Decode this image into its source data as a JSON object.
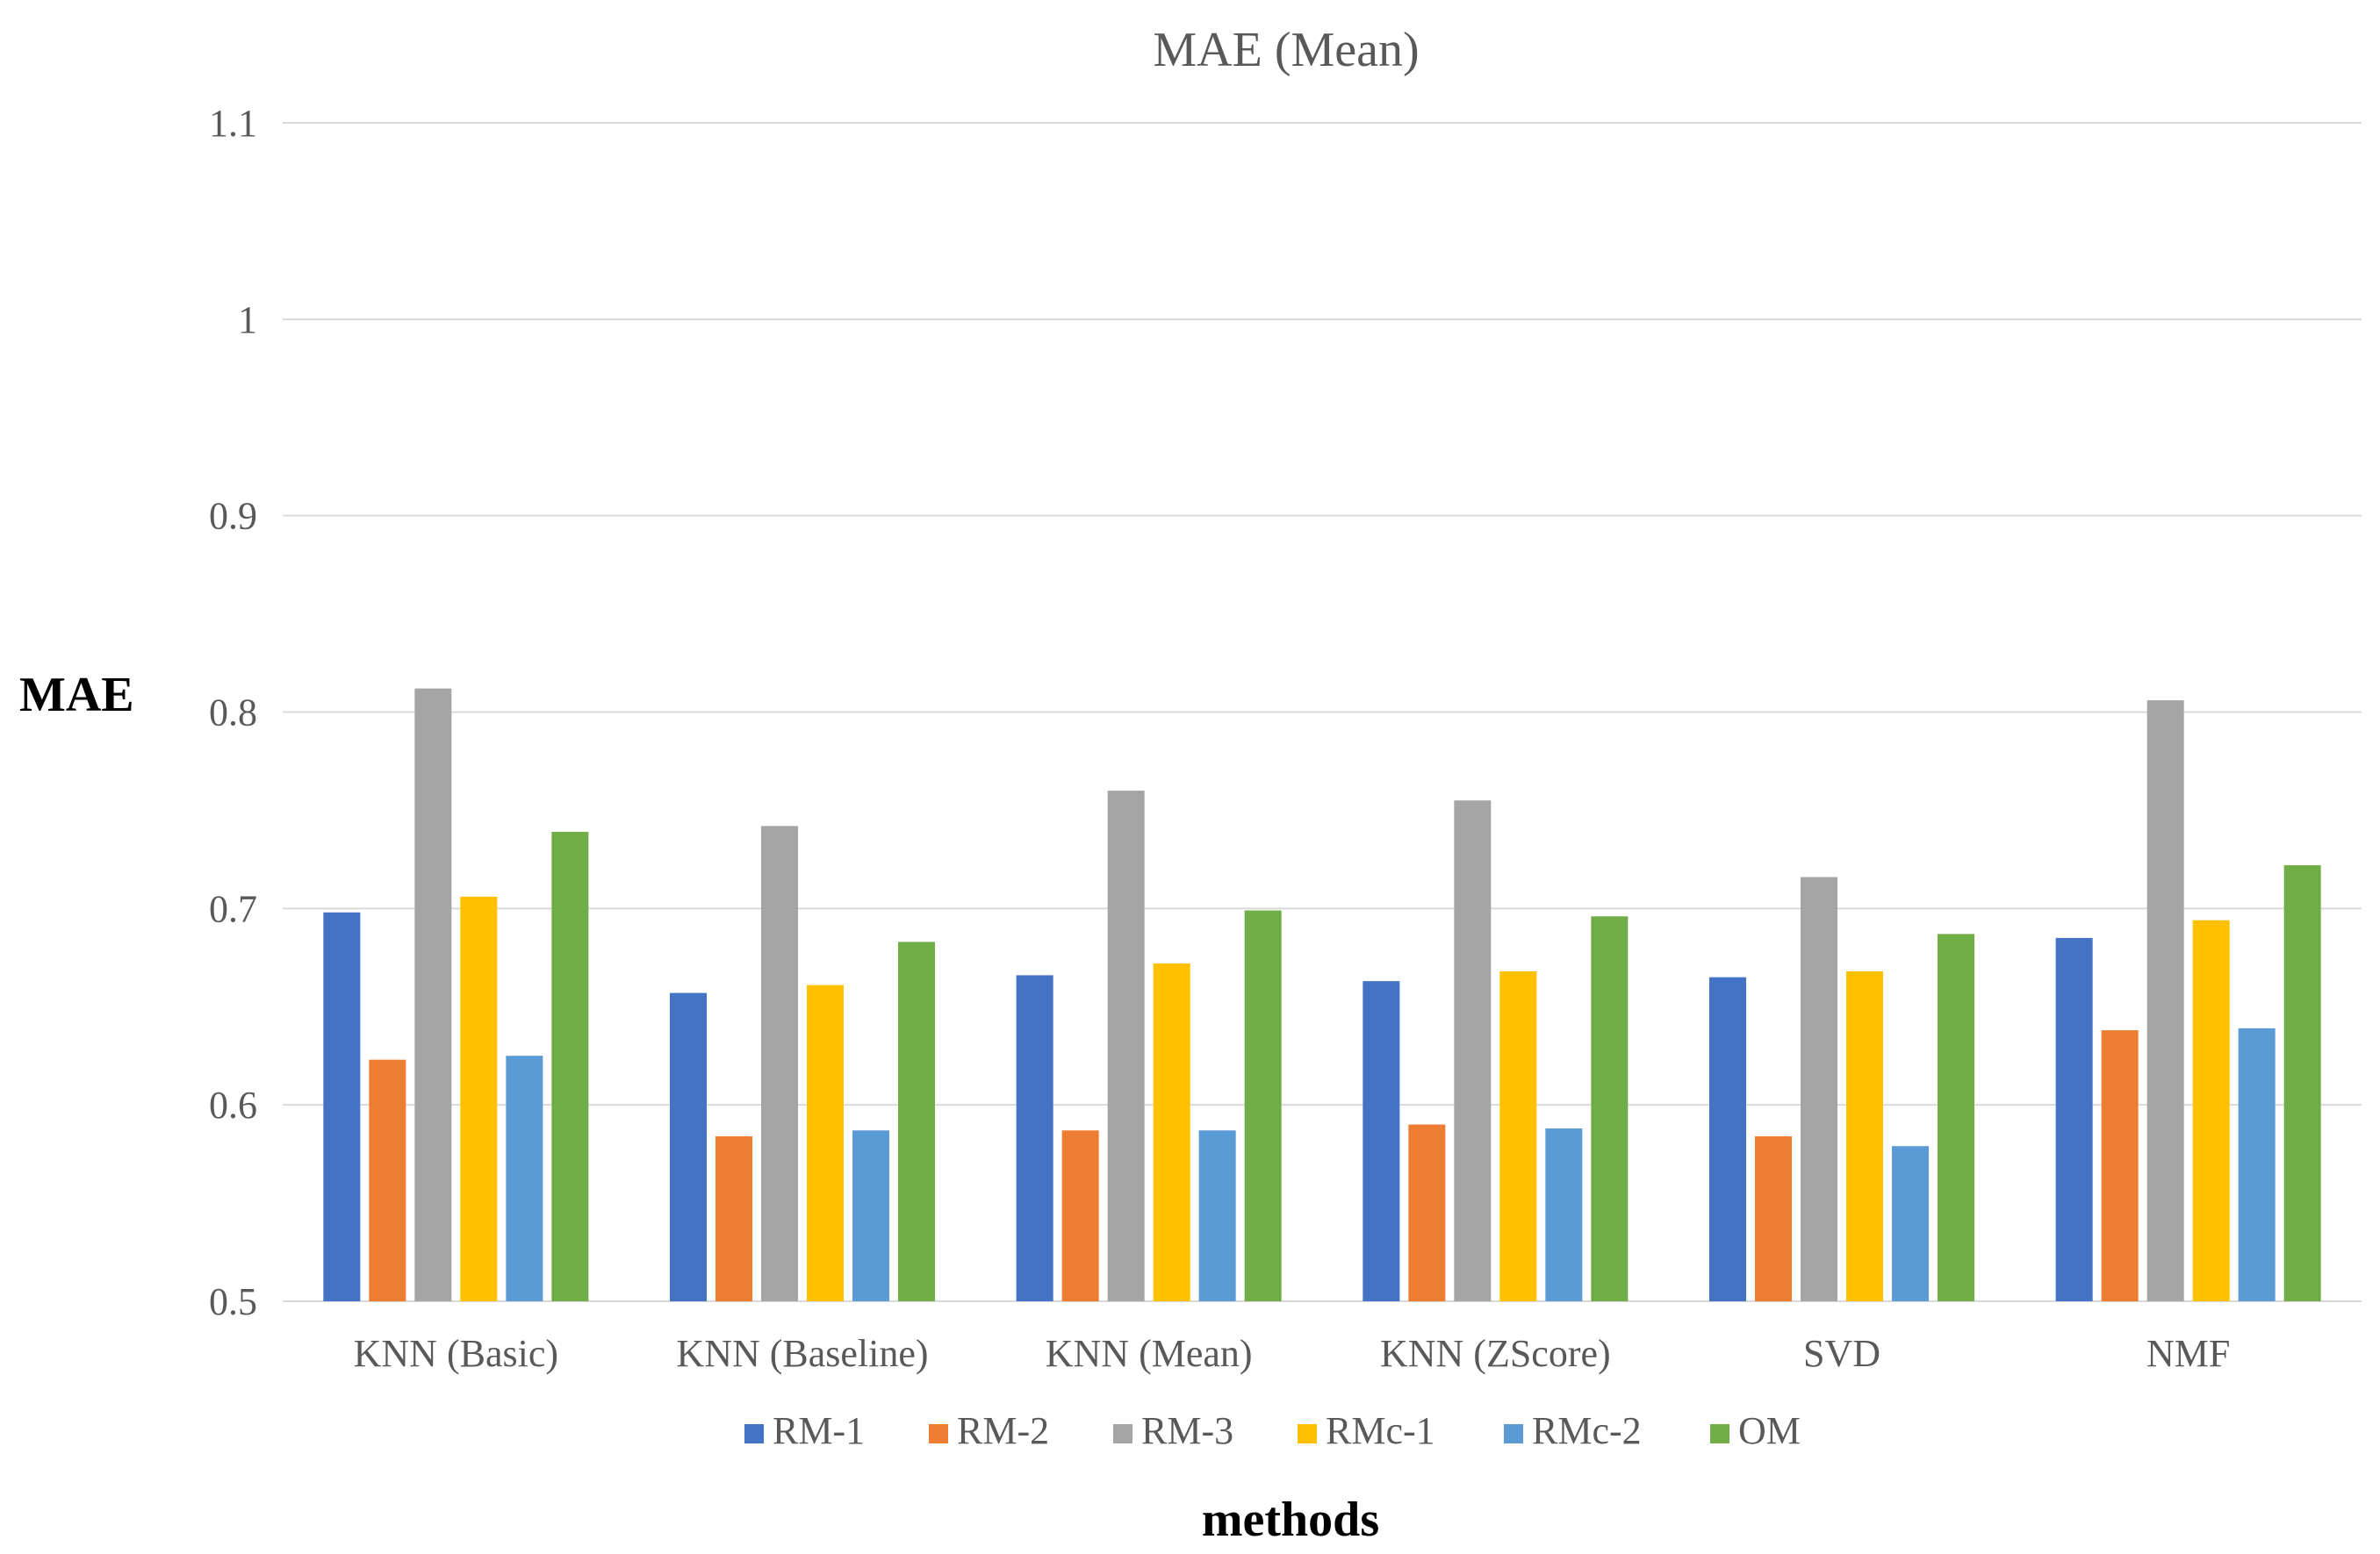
{
  "chart_data": {
    "type": "bar",
    "title": "MAE (Mean)",
    "xlabel": "methods",
    "ylabel": "MAE",
    "ylim": [
      0.5,
      1.1
    ],
    "yticks": [
      0.5,
      0.6,
      0.7,
      0.8,
      0.9,
      1,
      1.1
    ],
    "ytick_labels": [
      "0.5",
      "0.6",
      "0.7",
      "0.8",
      "0.9",
      "1",
      "1.1"
    ],
    "grid": true,
    "legend_position": "bottom",
    "categories": [
      "KNN (Basic)",
      "KNN (Baseline)",
      "KNN (Mean)",
      "KNN (ZScore)",
      "SVD",
      "NMF"
    ],
    "series": [
      {
        "name": "RM-1",
        "color": "#4472c4",
        "values": [
          0.698,
          0.657,
          0.666,
          0.663,
          0.665,
          0.685
        ]
      },
      {
        "name": "RM-2",
        "color": "#ed7d31",
        "values": [
          0.623,
          0.584,
          0.587,
          0.59,
          0.584,
          0.638
        ]
      },
      {
        "name": "RM-3",
        "color": "#a5a5a5",
        "values": [
          0.812,
          0.742,
          0.76,
          0.755,
          0.716,
          0.806
        ]
      },
      {
        "name": "RMc-1",
        "color": "#ffc000",
        "values": [
          0.706,
          0.661,
          0.672,
          0.668,
          0.668,
          0.694
        ]
      },
      {
        "name": "RMc-2",
        "color": "#5b9bd5",
        "values": [
          0.625,
          0.587,
          0.587,
          0.588,
          0.579,
          0.639
        ]
      },
      {
        "name": "OM",
        "color": "#70ad47",
        "values": [
          0.739,
          0.683,
          0.699,
          0.696,
          0.687,
          0.722
        ]
      }
    ]
  }
}
